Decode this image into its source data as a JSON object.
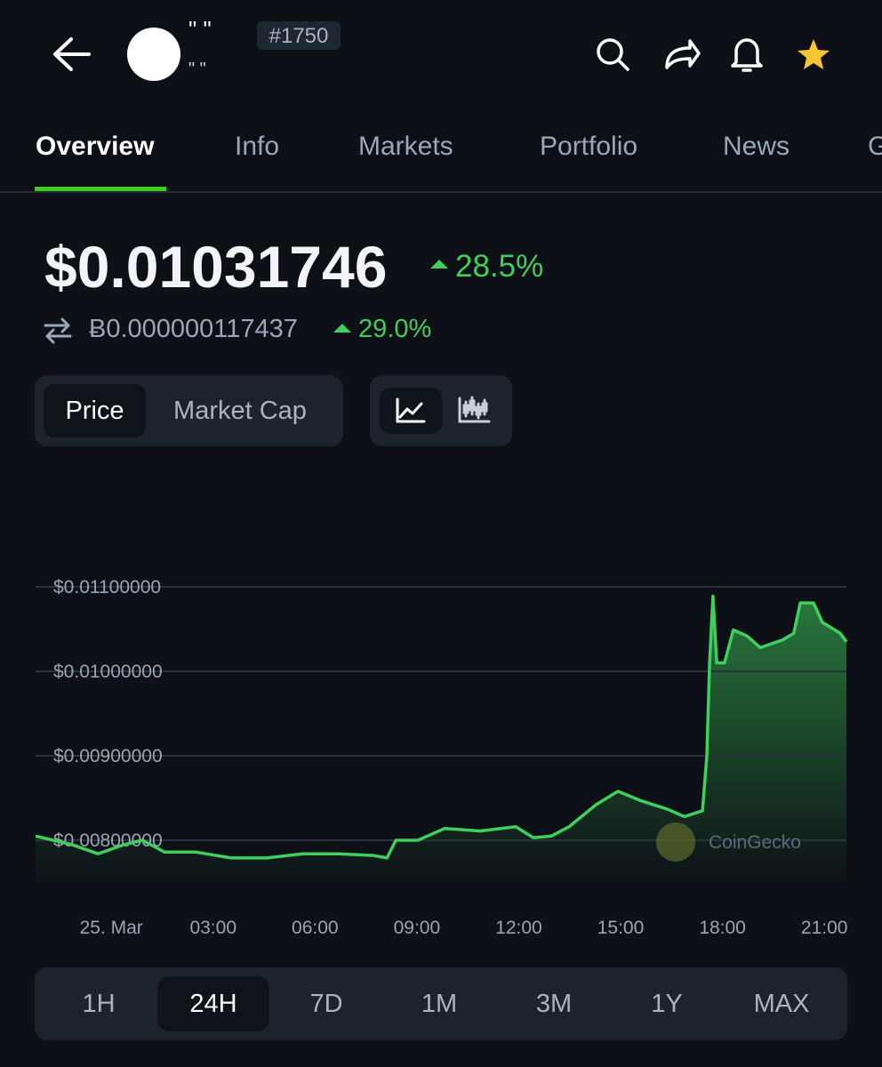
{
  "header": {
    "name_top": "\"  \"",
    "name_bottom": "\"  \"",
    "rank": "#1750"
  },
  "tabs": [
    "Overview",
    "Info",
    "Markets",
    "Portfolio",
    "News",
    "G"
  ],
  "price": {
    "usd": "$0.01031746",
    "usd_change": "28.5%",
    "btc": "Ƀ0.000000117437",
    "btc_change": "29.0%"
  },
  "toggle": [
    "Price",
    "Market Cap"
  ],
  "watermark": "CoinGecko",
  "ranges": [
    "1H",
    "24H",
    "7D",
    "1M",
    "3M",
    "1Y",
    "MAX"
  ],
  "chart_data": {
    "type": "line",
    "x": [
      -2.23,
      -1.7,
      -1.18,
      -0.39,
      0.39,
      0.92,
      1.57,
      2.49,
      3.53,
      4.58,
      5.63,
      6.68,
      7.72,
      8.12,
      8.38,
      9.03,
      9.82,
      10.86,
      11.91,
      12.43,
      12.96,
      13.48,
      14.27,
      14.92,
      15.58,
      16.36,
      16.88,
      17.41,
      17.54,
      17.62,
      17.72,
      17.83,
      18.06,
      18.32,
      18.72,
      19.11,
      19.76,
      20.1,
      20.29,
      20.68,
      20.94,
      21.47,
      21.65
    ],
    "series": [
      {
        "name": "Price",
        "color": "#3fcf5c",
        "values": [
          0.00805,
          0.008,
          0.00795,
          0.00784,
          0.00795,
          0.008,
          0.00786,
          0.00786,
          0.00779,
          0.00779,
          0.00784,
          0.00784,
          0.00782,
          0.00779,
          0.008,
          0.008,
          0.00814,
          0.00811,
          0.00816,
          0.00803,
          0.00805,
          0.00816,
          0.00842,
          0.00858,
          0.00847,
          0.00837,
          0.00828,
          0.00835,
          0.009,
          0.0101,
          0.01089,
          0.0101,
          0.0101,
          0.01049,
          0.01042,
          0.01028,
          0.01037,
          0.01045,
          0.01081,
          0.01081,
          0.01058,
          0.01045,
          0.01035
        ]
      }
    ],
    "xlim": [
      -2.23,
      21.65
    ],
    "xticks": [
      {
        "value": 0,
        "label": "25. Mar"
      },
      {
        "value": 3,
        "label": "03:00"
      },
      {
        "value": 6,
        "label": "06:00"
      },
      {
        "value": 9,
        "label": "09:00"
      },
      {
        "value": 12,
        "label": "12:00"
      },
      {
        "value": 15,
        "label": "15:00"
      },
      {
        "value": 18,
        "label": "18:00"
      },
      {
        "value": 21,
        "label": "21:00"
      }
    ],
    "ylim": [
      0.0075,
      0.0117
    ],
    "yticks": [
      {
        "value": 0.011,
        "label": "$0.01100000"
      },
      {
        "value": 0.01,
        "label": "$0.01000000"
      },
      {
        "value": 0.009,
        "label": "$0.00900000"
      },
      {
        "value": 0.008,
        "label": "$0.00800000"
      }
    ],
    "grid": true
  }
}
